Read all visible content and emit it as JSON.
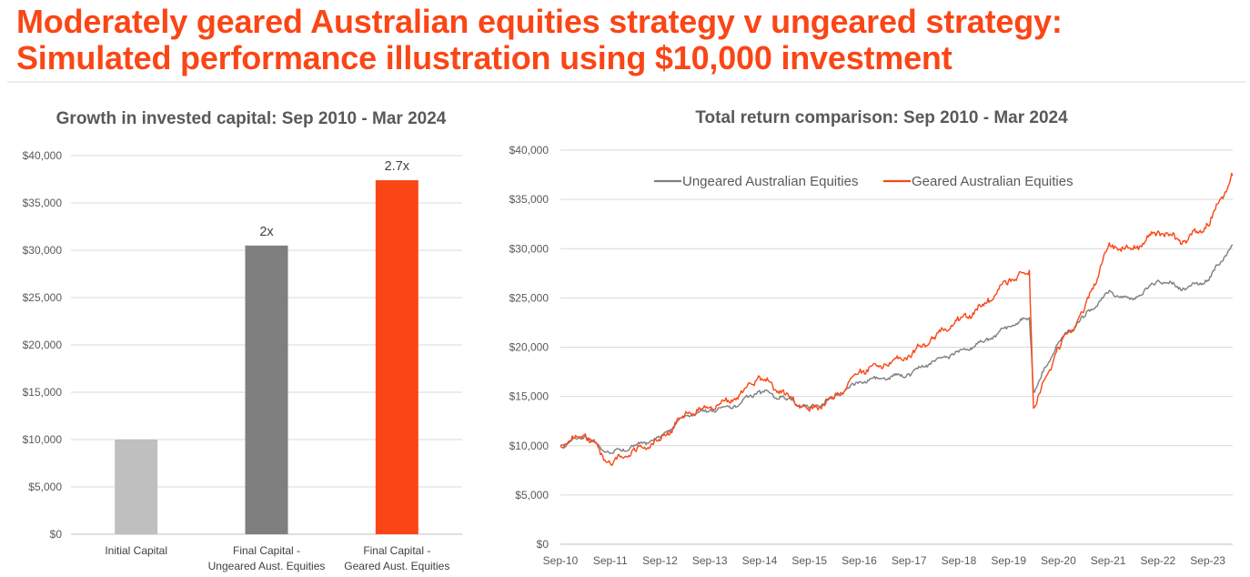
{
  "header": {
    "title_line1": "Moderately geared Australian equities strategy v ungeared strategy:",
    "title_line2": "Simulated performance illustration using $10,000 investment"
  },
  "chart_data": [
    {
      "type": "bar",
      "title": "Growth in invested capital: Sep 2010 - Mar 2024",
      "categories": [
        [
          "Initial Capital"
        ],
        [
          "Final Capital -",
          "Ungeared Aust. Equities"
        ],
        [
          "Final Capital -",
          "Geared Aust. Equities"
        ]
      ],
      "values": [
        10000,
        30500,
        37400
      ],
      "data_labels": [
        "",
        "2x",
        "2.7x"
      ],
      "colors": [
        "#BFBFBF",
        "#7F7F7F",
        "#FA4616"
      ],
      "ylim": [
        0,
        40000
      ],
      "yticks": [
        "$0",
        "$5,000",
        "$10,000",
        "$15,000",
        "$20,000",
        "$25,000",
        "$30,000",
        "$35,000",
        "$40,000"
      ],
      "grid": true
    },
    {
      "type": "line",
      "title": "Total return comparison: Sep 2010 - Mar 2024",
      "x": [
        "Sep-10",
        "Mar-11",
        "Sep-11",
        "Mar-12",
        "Sep-12",
        "Mar-13",
        "Sep-13",
        "Mar-14",
        "Sep-14",
        "Mar-15",
        "Sep-15",
        "Mar-16",
        "Sep-16",
        "Mar-17",
        "Sep-17",
        "Mar-18",
        "Sep-18",
        "Mar-19",
        "Sep-19",
        "Feb-20",
        "Mar-20",
        "Sep-20",
        "Mar-21",
        "Sep-21",
        "Mar-22",
        "Sep-22",
        "Mar-23",
        "Sep-23",
        "Mar-24"
      ],
      "xticks": [
        "Sep-10",
        "Sep-11",
        "Sep-12",
        "Sep-13",
        "Sep-14",
        "Sep-15",
        "Sep-16",
        "Sep-17",
        "Sep-18",
        "Sep-19",
        "Sep-20",
        "Sep-21",
        "Sep-22",
        "Sep-23"
      ],
      "series": [
        {
          "name": "Ungeared Australian Equities",
          "color": "#7F7F7F",
          "values": [
            10000,
            11000,
            9200,
            10000,
            10800,
            13000,
            13600,
            14100,
            15600,
            14800,
            13800,
            14900,
            16500,
            16900,
            17300,
            18600,
            19500,
            20500,
            22100,
            23000,
            15400,
            20500,
            23000,
            25500,
            24800,
            26800,
            26000,
            26800,
            30400
          ]
        },
        {
          "name": "Geared Australian Equities",
          "color": "#FA4616",
          "values": [
            10000,
            11200,
            8200,
            9500,
            10500,
            13200,
            13900,
            14800,
            17000,
            15200,
            13500,
            14800,
            17500,
            18300,
            19200,
            21000,
            22700,
            24200,
            26800,
            27800,
            13800,
            20000,
            23500,
            30200,
            29900,
            31800,
            30800,
            32400,
            37400
          ]
        }
      ],
      "ylim": [
        0,
        40000
      ],
      "yticks": [
        "$0",
        "$5,000",
        "$10,000",
        "$15,000",
        "$20,000",
        "$25,000",
        "$30,000",
        "$35,000",
        "$40,000"
      ],
      "grid": true,
      "legend": "top-left"
    }
  ]
}
